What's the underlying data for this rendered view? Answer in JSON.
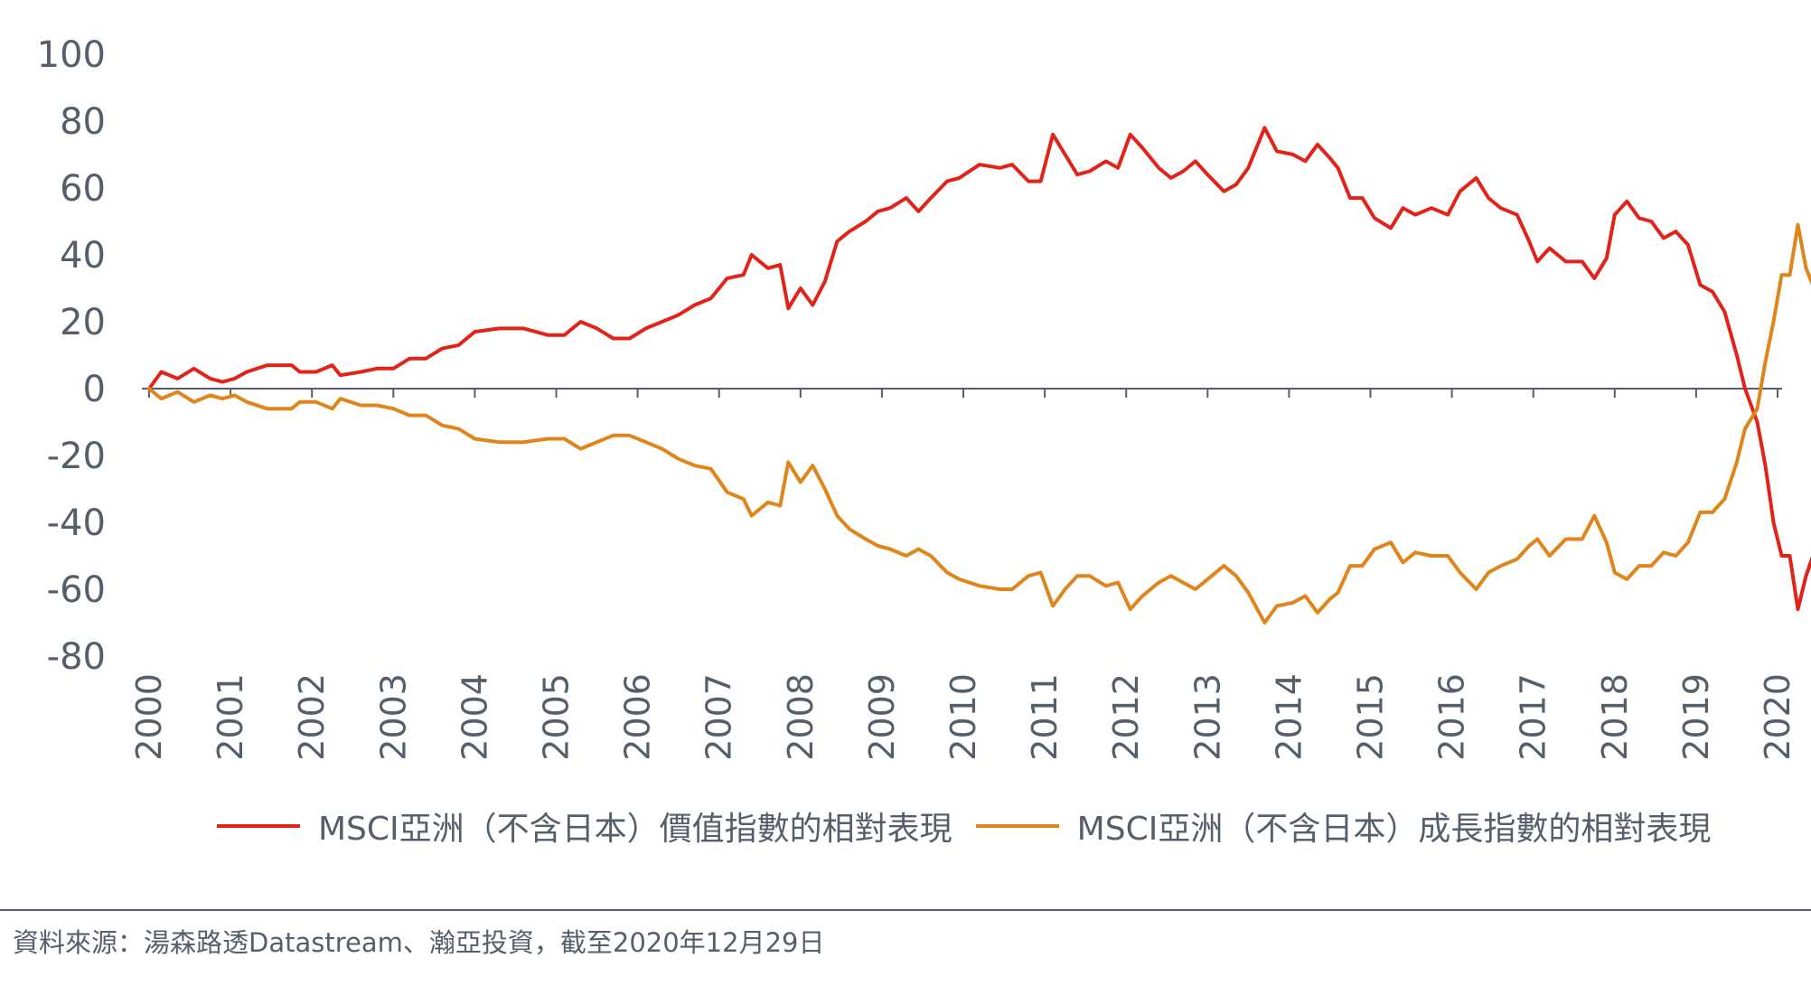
{
  "colors": {
    "value": "#e2231a",
    "growth": "#e0851b",
    "axis": "#555f6b"
  },
  "legend": {
    "value_label": "MSCI亞洲（不含日本）價值指數的相對表現",
    "growth_label": "MSCI亞洲（不含日本）成長指數的相對表現"
  },
  "source": "資料來源：湯森路透Datastream、瀚亞投資，截至2020年12月29日",
  "chart_data": {
    "type": "line",
    "title": "",
    "xlabel": "",
    "ylabel": "",
    "xlim": [
      2000,
      2021
    ],
    "ylim": [
      -80,
      100
    ],
    "y_ticks": [
      100,
      80,
      60,
      40,
      20,
      0,
      -20,
      -40,
      -60,
      -80
    ],
    "x_ticks": [
      "2000",
      "2001",
      "2002",
      "2003",
      "2004",
      "2005",
      "2006",
      "2007",
      "2008",
      "2009",
      "2010",
      "2011",
      "2012",
      "2013",
      "2014",
      "2015",
      "2016",
      "2017",
      "2018",
      "2019",
      "2020"
    ],
    "series": [
      {
        "name": "MSCI亞洲（不含日本）價值指數的相對表現",
        "color": "#e2231a",
        "points": [
          [
            2000,
            0
          ],
          [
            2000.15,
            5
          ],
          [
            2000.35,
            3
          ],
          [
            2000.55,
            6
          ],
          [
            2000.75,
            3
          ],
          [
            2000.9,
            2
          ],
          [
            2001.05,
            3
          ],
          [
            2001.2,
            5
          ],
          [
            2001.45,
            7
          ],
          [
            2001.75,
            7
          ],
          [
            2001.85,
            5
          ],
          [
            2002.05,
            5
          ],
          [
            2002.25,
            7
          ],
          [
            2002.35,
            4
          ],
          [
            2002.6,
            5
          ],
          [
            2002.8,
            6
          ],
          [
            2003.0,
            6
          ],
          [
            2003.2,
            9
          ],
          [
            2003.4,
            9
          ],
          [
            2003.6,
            12
          ],
          [
            2003.8,
            13
          ],
          [
            2004.0,
            17
          ],
          [
            2004.3,
            18
          ],
          [
            2004.6,
            18
          ],
          [
            2004.9,
            16
          ],
          [
            2005.1,
            16
          ],
          [
            2005.3,
            20
          ],
          [
            2005.5,
            18
          ],
          [
            2005.7,
            15
          ],
          [
            2005.9,
            15
          ],
          [
            2006.1,
            18
          ],
          [
            2006.3,
            20
          ],
          [
            2006.5,
            22
          ],
          [
            2006.7,
            25
          ],
          [
            2006.9,
            27
          ],
          [
            2007.1,
            33
          ],
          [
            2007.3,
            34
          ],
          [
            2007.4,
            40
          ],
          [
            2007.6,
            36
          ],
          [
            2007.75,
            37
          ],
          [
            2007.85,
            24
          ],
          [
            2008.0,
            30
          ],
          [
            2008.15,
            25
          ],
          [
            2008.3,
            32
          ],
          [
            2008.45,
            44
          ],
          [
            2008.6,
            47
          ],
          [
            2008.8,
            50
          ],
          [
            2008.95,
            53
          ],
          [
            2009.1,
            54
          ],
          [
            2009.3,
            57
          ],
          [
            2009.45,
            53
          ],
          [
            2009.6,
            57
          ],
          [
            2009.8,
            62
          ],
          [
            2009.95,
            63
          ],
          [
            2010.2,
            67
          ],
          [
            2010.45,
            66
          ],
          [
            2010.6,
            67
          ],
          [
            2010.8,
            62
          ],
          [
            2010.95,
            62
          ],
          [
            2011.1,
            76
          ],
          [
            2011.25,
            70
          ],
          [
            2011.4,
            64
          ],
          [
            2011.55,
            65
          ],
          [
            2011.75,
            68
          ],
          [
            2011.9,
            66
          ],
          [
            2012.05,
            76
          ],
          [
            2012.2,
            72
          ],
          [
            2012.4,
            66
          ],
          [
            2012.55,
            63
          ],
          [
            2012.7,
            65
          ],
          [
            2012.85,
            68
          ],
          [
            2013.0,
            64
          ],
          [
            2013.2,
            59
          ],
          [
            2013.35,
            61
          ],
          [
            2013.5,
            66
          ],
          [
            2013.7,
            78
          ],
          [
            2013.85,
            71
          ],
          [
            2014.05,
            70
          ],
          [
            2014.2,
            68
          ],
          [
            2014.35,
            73
          ],
          [
            2014.5,
            69
          ],
          [
            2014.6,
            66
          ],
          [
            2014.75,
            57
          ],
          [
            2014.9,
            57
          ],
          [
            2015.05,
            51
          ],
          [
            2015.25,
            48
          ],
          [
            2015.4,
            54
          ],
          [
            2015.55,
            52
          ],
          [
            2015.75,
            54
          ],
          [
            2015.95,
            52
          ],
          [
            2016.1,
            59
          ],
          [
            2016.3,
            63
          ],
          [
            2016.45,
            57
          ],
          [
            2016.6,
            54
          ],
          [
            2016.8,
            52
          ],
          [
            2016.95,
            44
          ],
          [
            2017.05,
            38
          ],
          [
            2017.2,
            42
          ],
          [
            2017.4,
            38
          ],
          [
            2017.6,
            38
          ],
          [
            2017.75,
            33
          ],
          [
            2017.9,
            39
          ],
          [
            2018.0,
            52
          ],
          [
            2018.15,
            56
          ],
          [
            2018.3,
            51
          ],
          [
            2018.45,
            50
          ],
          [
            2018.6,
            45
          ],
          [
            2018.75,
            47
          ],
          [
            2018.9,
            43
          ],
          [
            2019.05,
            31
          ],
          [
            2019.2,
            29
          ],
          [
            2019.35,
            23
          ],
          [
            2019.5,
            10
          ],
          [
            2019.6,
            0
          ],
          [
            2019.75,
            -10
          ],
          [
            2019.85,
            -23
          ],
          [
            2019.95,
            -40
          ],
          [
            2020.05,
            -50
          ],
          [
            2020.15,
            -50
          ],
          [
            2020.25,
            -66
          ],
          [
            2020.35,
            -56
          ],
          [
            2020.45,
            -49
          ]
        ]
      },
      {
        "name": "MSCI亞洲（不含日本）成長指數的相對表現",
        "color": "#e0851b",
        "points": [
          [
            2000,
            0
          ],
          [
            2000.15,
            -3
          ],
          [
            2000.35,
            -1
          ],
          [
            2000.55,
            -4
          ],
          [
            2000.75,
            -2
          ],
          [
            2000.9,
            -3
          ],
          [
            2001.05,
            -2
          ],
          [
            2001.2,
            -4
          ],
          [
            2001.45,
            -6
          ],
          [
            2001.75,
            -6
          ],
          [
            2001.85,
            -4
          ],
          [
            2002.05,
            -4
          ],
          [
            2002.25,
            -6
          ],
          [
            2002.35,
            -3
          ],
          [
            2002.6,
            -5
          ],
          [
            2002.8,
            -5
          ],
          [
            2003.0,
            -6
          ],
          [
            2003.2,
            -8
          ],
          [
            2003.4,
            -8
          ],
          [
            2003.6,
            -11
          ],
          [
            2003.8,
            -12
          ],
          [
            2004.0,
            -15
          ],
          [
            2004.3,
            -16
          ],
          [
            2004.6,
            -16
          ],
          [
            2004.9,
            -15
          ],
          [
            2005.1,
            -15
          ],
          [
            2005.3,
            -18
          ],
          [
            2005.5,
            -16
          ],
          [
            2005.7,
            -14
          ],
          [
            2005.9,
            -14
          ],
          [
            2006.1,
            -16
          ],
          [
            2006.3,
            -18
          ],
          [
            2006.5,
            -21
          ],
          [
            2006.7,
            -23
          ],
          [
            2006.9,
            -24
          ],
          [
            2007.1,
            -31
          ],
          [
            2007.3,
            -33
          ],
          [
            2007.4,
            -38
          ],
          [
            2007.6,
            -34
          ],
          [
            2007.75,
            -35
          ],
          [
            2007.85,
            -22
          ],
          [
            2008.0,
            -28
          ],
          [
            2008.15,
            -23
          ],
          [
            2008.3,
            -30
          ],
          [
            2008.45,
            -38
          ],
          [
            2008.6,
            -42
          ],
          [
            2008.8,
            -45
          ],
          [
            2008.95,
            -47
          ],
          [
            2009.1,
            -48
          ],
          [
            2009.3,
            -50
          ],
          [
            2009.45,
            -48
          ],
          [
            2009.6,
            -50
          ],
          [
            2009.8,
            -55
          ],
          [
            2009.95,
            -57
          ],
          [
            2010.2,
            -59
          ],
          [
            2010.45,
            -60
          ],
          [
            2010.6,
            -60
          ],
          [
            2010.8,
            -56
          ],
          [
            2010.95,
            -55
          ],
          [
            2011.1,
            -65
          ],
          [
            2011.25,
            -60
          ],
          [
            2011.4,
            -56
          ],
          [
            2011.55,
            -56
          ],
          [
            2011.75,
            -59
          ],
          [
            2011.9,
            -58
          ],
          [
            2012.05,
            -66
          ],
          [
            2012.2,
            -62
          ],
          [
            2012.4,
            -58
          ],
          [
            2012.55,
            -56
          ],
          [
            2012.7,
            -58
          ],
          [
            2012.85,
            -60
          ],
          [
            2013.0,
            -57
          ],
          [
            2013.2,
            -53
          ],
          [
            2013.35,
            -56
          ],
          [
            2013.5,
            -61
          ],
          [
            2013.7,
            -70
          ],
          [
            2013.85,
            -65
          ],
          [
            2014.05,
            -64
          ],
          [
            2014.2,
            -62
          ],
          [
            2014.35,
            -67
          ],
          [
            2014.5,
            -63
          ],
          [
            2014.6,
            -61
          ],
          [
            2014.75,
            -53
          ],
          [
            2014.9,
            -53
          ],
          [
            2015.05,
            -48
          ],
          [
            2015.25,
            -46
          ],
          [
            2015.4,
            -52
          ],
          [
            2015.55,
            -49
          ],
          [
            2015.75,
            -50
          ],
          [
            2015.95,
            -50
          ],
          [
            2016.1,
            -55
          ],
          [
            2016.3,
            -60
          ],
          [
            2016.45,
            -55
          ],
          [
            2016.6,
            -53
          ],
          [
            2016.8,
            -51
          ],
          [
            2016.95,
            -47
          ],
          [
            2017.05,
            -45
          ],
          [
            2017.2,
            -50
          ],
          [
            2017.4,
            -45
          ],
          [
            2017.6,
            -45
          ],
          [
            2017.75,
            -38
          ],
          [
            2017.9,
            -46
          ],
          [
            2018.0,
            -55
          ],
          [
            2018.15,
            -57
          ],
          [
            2018.3,
            -53
          ],
          [
            2018.45,
            -53
          ],
          [
            2018.6,
            -49
          ],
          [
            2018.75,
            -50
          ],
          [
            2018.9,
            -46
          ],
          [
            2019.05,
            -37
          ],
          [
            2019.2,
            -37
          ],
          [
            2019.35,
            -33
          ],
          [
            2019.5,
            -22
          ],
          [
            2019.6,
            -12
          ],
          [
            2019.75,
            -6
          ],
          [
            2019.85,
            8
          ],
          [
            2019.95,
            20
          ],
          [
            2020.05,
            34
          ],
          [
            2020.15,
            34
          ],
          [
            2020.25,
            49
          ],
          [
            2020.35,
            36
          ],
          [
            2020.45,
            30
          ]
        ]
      }
    ],
    "grid": false,
    "legend_position": "bottom"
  }
}
